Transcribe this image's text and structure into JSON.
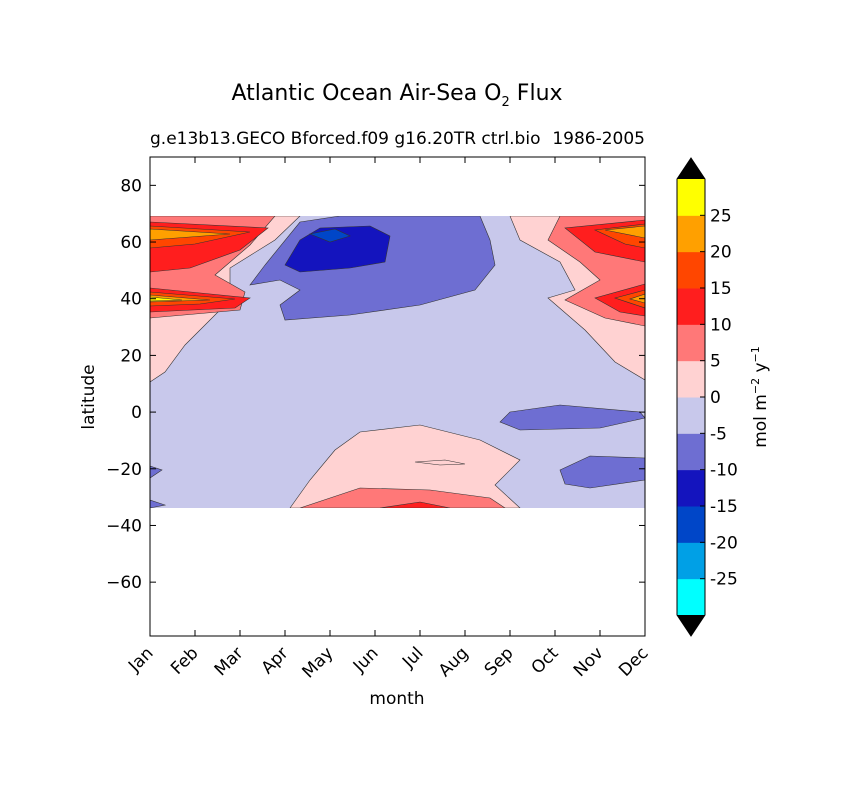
{
  "chart_data": {
    "type": "contourf",
    "title": "Atlantic Ocean Air-Sea O",
    "title_subscript": "2",
    "title_suffix": "Flux",
    "subtitle_left": "g.e13b13.GECO Bforced.f09 g16.20TR ctrl.bio",
    "subtitle_right": "1986-2005",
    "xlabel": "month",
    "ylabel": "latitude",
    "x_ticks": [
      "Jan",
      "Feb",
      "Mar",
      "Apr",
      "May",
      "Jun",
      "Jul",
      "Aug",
      "Sep",
      "Oct",
      "Nov",
      "Dec"
    ],
    "y_ticks": [
      80,
      60,
      40,
      20,
      0,
      -20,
      -40,
      -60
    ],
    "y_tick_labels": [
      "80",
      "60",
      "40",
      "20",
      "0",
      "−20",
      "−40",
      "−60"
    ],
    "ylim": [
      -79,
      90
    ],
    "data_lat_range": [
      -34,
      68
    ],
    "colorbar": {
      "label": "mol m",
      "label_sup1": "−2",
      "label_mid": "y",
      "label_sup2": "−1",
      "levels": [
        -30,
        -25,
        -20,
        -15,
        -10,
        -5,
        0,
        5,
        10,
        15,
        20,
        25,
        30
      ],
      "tick_values": [
        25,
        20,
        15,
        10,
        5,
        0,
        -5,
        -10,
        -15,
        -20,
        -25
      ],
      "tick_labels": [
        "25",
        "20",
        "15",
        "10",
        "5",
        "0",
        "-5",
        "-10",
        "-15",
        "-20",
        "-25"
      ],
      "colors": [
        "#00ffff",
        "#00a0e6",
        "#0046c8",
        "#1414be",
        "#6e6ed2",
        "#c8c8eb",
        "#ffd2d2",
        "#ff7878",
        "#ff1e1e",
        "#ff4600",
        "#ffa000",
        "#ffff00"
      ],
      "extend": "both",
      "extend_colors": [
        "#000000",
        "#000000"
      ]
    },
    "regions": {
      "background": "slightly negative flux (-5 to 0) over most of the domain",
      "north_winter_max": "positive flux up to 20-25 near 38N and 63N in Jan and Dec",
      "north_summer_min": "negative flux (-10 to -15) at 40-65N from Apr to Jul",
      "equator_band": "-10 to -5 band near 0 from Sep to Dec",
      "southern_winter": "positive flux (0 to 10) south of -20 from May to Sep"
    }
  }
}
